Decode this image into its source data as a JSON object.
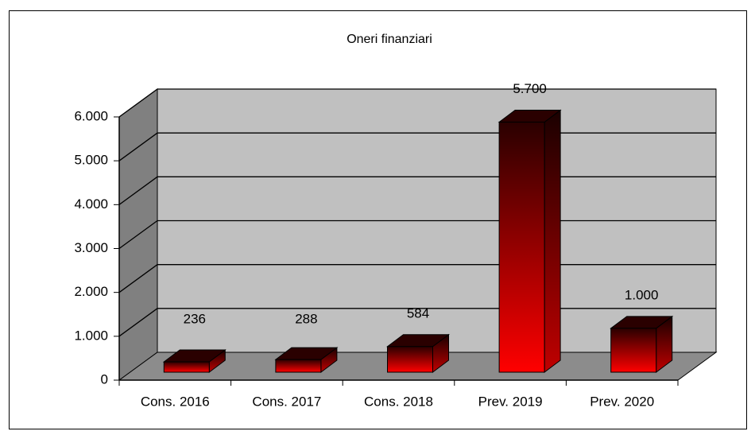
{
  "chart_data": {
    "type": "bar3d",
    "title": "Oneri  finanziari",
    "categories": [
      "Cons. 2016",
      "Cons. 2017",
      "Cons. 2018",
      "Prev. 2019",
      "Prev. 2020"
    ],
    "values": [
      236,
      288,
      584,
      5700,
      1000
    ],
    "value_labels": [
      "236",
      "288",
      "584",
      "5.700",
      "1.000"
    ],
    "color": "#ff0000",
    "ylim": [
      0,
      6000
    ],
    "yticks": [
      0,
      {
        "value": 1000,
        "label": "1.000"
      },
      {
        "value": 2000,
        "label": "2.000"
      },
      {
        "value": 3000,
        "label": "3.000"
      },
      {
        "value": 4000,
        "label": "4.000"
      },
      {
        "value": 5000,
        "label": "5.000"
      },
      {
        "value": 6000,
        "label": "6.000"
      }
    ],
    "grid": true
  }
}
